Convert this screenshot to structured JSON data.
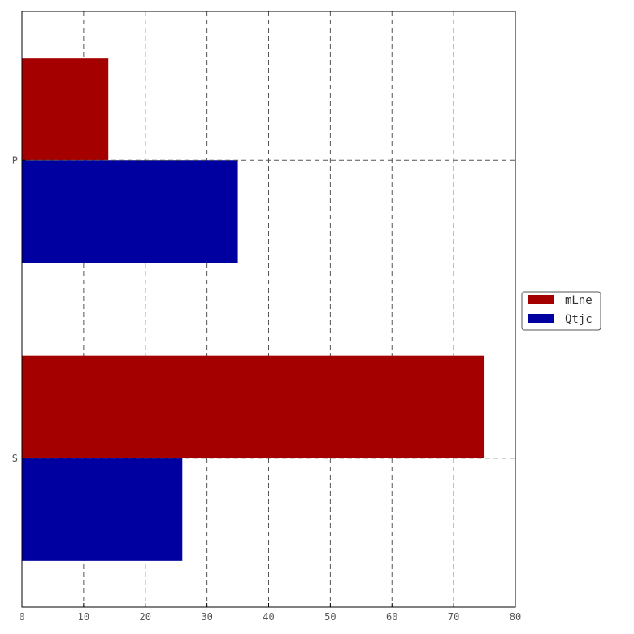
{
  "chart_data": {
    "type": "bar",
    "orientation": "horizontal",
    "categories": [
      "P",
      "S"
    ],
    "series": [
      {
        "name": "mLne",
        "values": [
          14,
          75
        ],
        "color": "#a50000"
      },
      {
        "name": "Qtjc",
        "values": [
          35,
          26
        ],
        "color": "#0000a0"
      }
    ],
    "xlim": [
      0,
      80
    ],
    "xticks": [
      "0",
      "10",
      "20",
      "30",
      "40",
      "50",
      "60",
      "70",
      "80"
    ],
    "grid": true,
    "legend_position": "right"
  }
}
